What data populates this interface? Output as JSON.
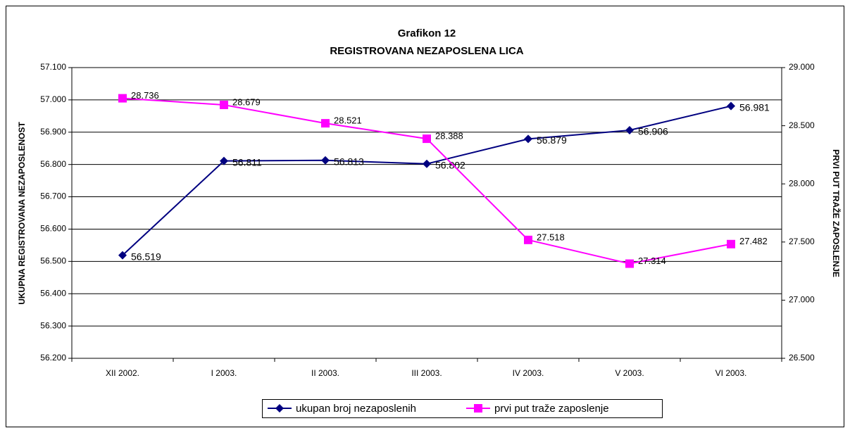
{
  "chart_data": {
    "type": "line",
    "title": [
      "Grafikon 12",
      "REGISTROVANA NEZAPOSLENA LICA"
    ],
    "y_label": "UKUPNA REGISTROVANA NEZAPOSLENOST",
    "y2_label": "PRVI PUT TRAŽE ZAPOSLENJE",
    "categories": [
      "XII 2002.",
      "I 2003.",
      "II 2003.",
      "III 2003.",
      "IV  2003.",
      "V 2003.",
      "VI  2003."
    ],
    "series": [
      {
        "name": "ukupan broj nezaposlenih",
        "color": "#000080",
        "marker": "diamond",
        "axis": "y",
        "values": [
          56519,
          56811,
          56813,
          56802,
          56879,
          56906,
          56981
        ],
        "value_labels": [
          "56.519",
          "56.811",
          "56.813",
          "56.802",
          "56.879",
          "56.906",
          "56.981"
        ]
      },
      {
        "name": "prvi put traže zaposlenje",
        "color": "#ff00ff",
        "marker": "square",
        "axis": "y2",
        "values": [
          28736,
          28679,
          28521,
          28388,
          27518,
          27314,
          27482
        ],
        "value_labels": [
          "28.736",
          "28.679",
          "28.521",
          "28.388",
          "27.518",
          "27.314",
          "27.482"
        ]
      }
    ],
    "ylim": [
      56200,
      57100
    ],
    "yticks": [
      {
        "value": 56200,
        "label": "56.200"
      },
      {
        "value": 56300,
        "label": "56.300"
      },
      {
        "value": 56400,
        "label": "56.400"
      },
      {
        "value": 56500,
        "label": "56.500"
      },
      {
        "value": 56600,
        "label": "56.600"
      },
      {
        "value": 56700,
        "label": "56.700"
      },
      {
        "value": 56800,
        "label": "56.800"
      },
      {
        "value": 56900,
        "label": "56.900"
      },
      {
        "value": 57000,
        "label": "57.000"
      },
      {
        "value": 57100,
        "label": "57.100"
      }
    ],
    "y2lim": [
      26500,
      29000
    ],
    "y2ticks": [
      {
        "value": 26500,
        "label": "26.500"
      },
      {
        "value": 27000,
        "label": "27.000"
      },
      {
        "value": 27500,
        "label": "27.500"
      },
      {
        "value": 28000,
        "label": "28.000"
      },
      {
        "value": 28500,
        "label": "28.500"
      },
      {
        "value": 29000,
        "label": "29.000"
      }
    ],
    "grid": true,
    "legend": "bottom"
  }
}
